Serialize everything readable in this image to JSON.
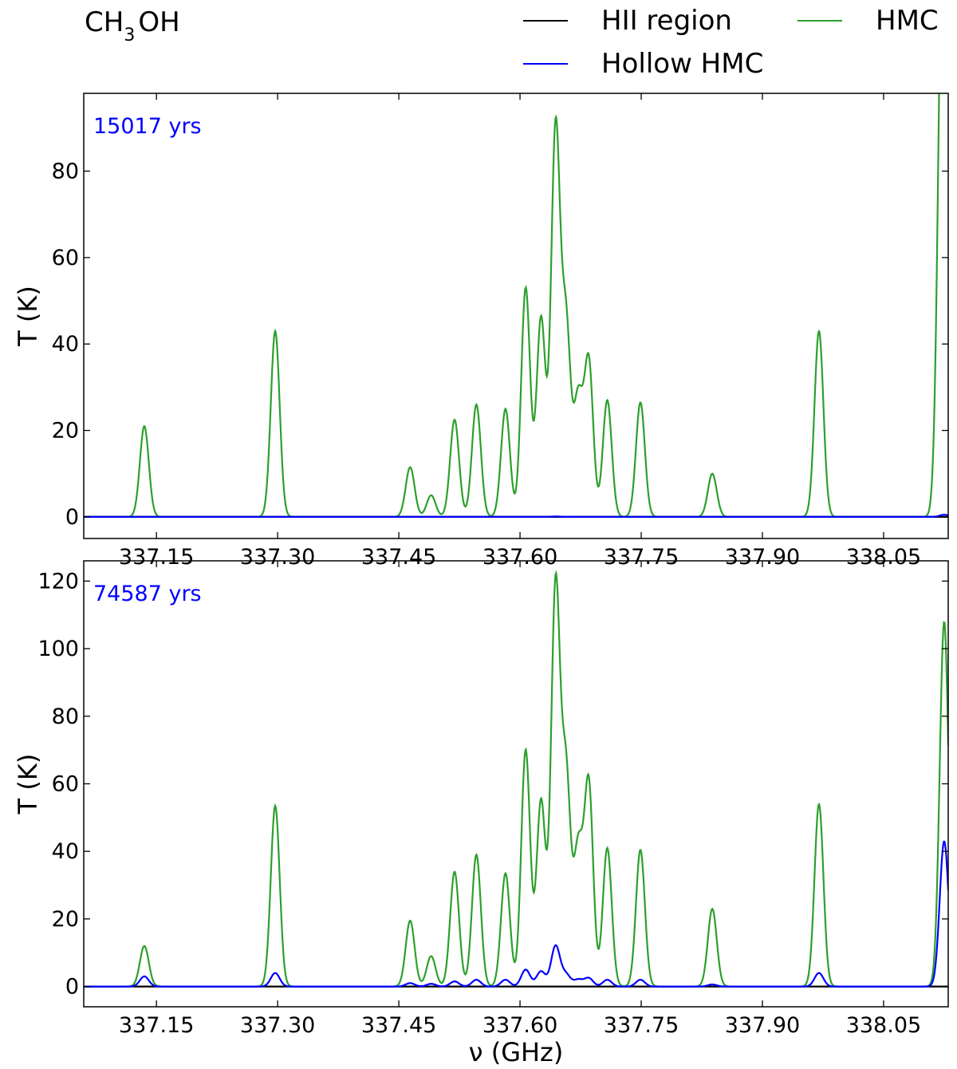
{
  "figure": {
    "species_main": "CH",
    "species_sub": "3",
    "species_tail": "OH"
  },
  "legend": [
    {
      "label": "HII region",
      "color": "#000000"
    },
    {
      "label": "HMC",
      "color": "#2ca02c"
    },
    {
      "label": "Hollow HMC",
      "color": "#0000ff"
    }
  ],
  "colors": {
    "hmc": "#2ca02c",
    "hollow": "#0000ff",
    "hii": "#000000",
    "annotation": "#0000ff"
  },
  "chart_data": [
    {
      "type": "line",
      "annotation": "15017 yrs",
      "xlabel": "",
      "ylabel": "T (K)",
      "xlim": [
        337.06,
        338.13
      ],
      "ylim": [
        -5,
        98
      ],
      "xticks": [
        337.15,
        337.3,
        337.45,
        337.6,
        337.75,
        337.9,
        338.05
      ],
      "xticklabels": [
        "337.15",
        "337.30",
        "337.45",
        "337.60",
        "337.75",
        "337.90",
        "338.05"
      ],
      "yticks": [
        0,
        20,
        40,
        60,
        80
      ],
      "yticklabels": [
        "0",
        "20",
        "40",
        "60",
        "80"
      ],
      "line_width_ghz": 0.0055,
      "series": [
        {
          "name": "HII region",
          "color": "#000000",
          "peaks": [
            [
              337.135,
              0
            ]
          ]
        },
        {
          "name": "HMC",
          "color": "#2ca02c",
          "peaks": [
            [
              337.135,
              21
            ],
            [
              337.297,
              43
            ],
            [
              337.464,
              11.5
            ],
            [
              337.49,
              5
            ],
            [
              337.519,
              22.5
            ],
            [
              337.546,
              26
            ],
            [
              337.582,
              25
            ],
            [
              337.607,
              53
            ],
            [
              337.626,
              46
            ],
            [
              337.644,
              89.5
            ],
            [
              337.657,
              44
            ],
            [
              337.672,
              27
            ],
            [
              337.685,
              36
            ],
            [
              337.708,
              27
            ],
            [
              337.749,
              26.5
            ],
            [
              337.838,
              10
            ],
            [
              337.97,
              43
            ],
            [
              338.122,
              91.5
            ],
            [
              338.128,
              91.5
            ]
          ]
        },
        {
          "name": "Hollow HMC",
          "color": "#0000ff",
          "peaks": [
            [
              337.644,
              0.1
            ],
            [
              338.125,
              0.5
            ]
          ]
        }
      ]
    },
    {
      "type": "line",
      "annotation": "74587 yrs",
      "xlabel": "ν (GHz)",
      "ylabel": "T (K)",
      "xlim": [
        337.06,
        338.13
      ],
      "ylim": [
        -6,
        126
      ],
      "xticks": [
        337.15,
        337.3,
        337.45,
        337.6,
        337.75,
        337.9,
        338.05
      ],
      "xticklabels": [
        "337.15",
        "337.30",
        "337.45",
        "337.60",
        "337.75",
        "337.90",
        "338.05"
      ],
      "yticks": [
        0,
        20,
        40,
        60,
        80,
        100,
        120
      ],
      "yticklabels": [
        "0",
        "20",
        "40",
        "60",
        "80",
        "100",
        "120"
      ],
      "line_width_ghz": 0.0055,
      "series": [
        {
          "name": "HII region",
          "color": "#000000",
          "peaks": [
            [
              337.135,
              0
            ]
          ]
        },
        {
          "name": "HMC",
          "color": "#2ca02c",
          "peaks": [
            [
              337.135,
              12
            ],
            [
              337.297,
              53.5
            ],
            [
              337.464,
              19.5
            ],
            [
              337.49,
              9
            ],
            [
              337.519,
              34
            ],
            [
              337.546,
              39
            ],
            [
              337.582,
              33.5
            ],
            [
              337.607,
              70
            ],
            [
              337.626,
              55
            ],
            [
              337.644,
              118
            ],
            [
              337.657,
              62
            ],
            [
              337.672,
              40
            ],
            [
              337.685,
              60
            ],
            [
              337.708,
              41
            ],
            [
              337.749,
              40.5
            ],
            [
              337.838,
              23
            ],
            [
              337.97,
              54
            ],
            [
              338.125,
              108
            ]
          ]
        },
        {
          "name": "Hollow HMC",
          "color": "#0000ff",
          "peaks": [
            [
              337.135,
              3
            ],
            [
              337.297,
              4
            ],
            [
              337.464,
              1
            ],
            [
              337.49,
              0.8
            ],
            [
              337.519,
              1.5
            ],
            [
              337.546,
              2
            ],
            [
              337.582,
              2
            ],
            [
              337.607,
              5
            ],
            [
              337.626,
              4.5
            ],
            [
              337.644,
              12
            ],
            [
              337.657,
              3.5
            ],
            [
              337.672,
              2
            ],
            [
              337.685,
              2.5
            ],
            [
              337.708,
              2
            ],
            [
              337.749,
              2
            ],
            [
              337.838,
              0.6
            ],
            [
              337.97,
              4
            ],
            [
              338.125,
              43
            ]
          ]
        }
      ]
    }
  ]
}
